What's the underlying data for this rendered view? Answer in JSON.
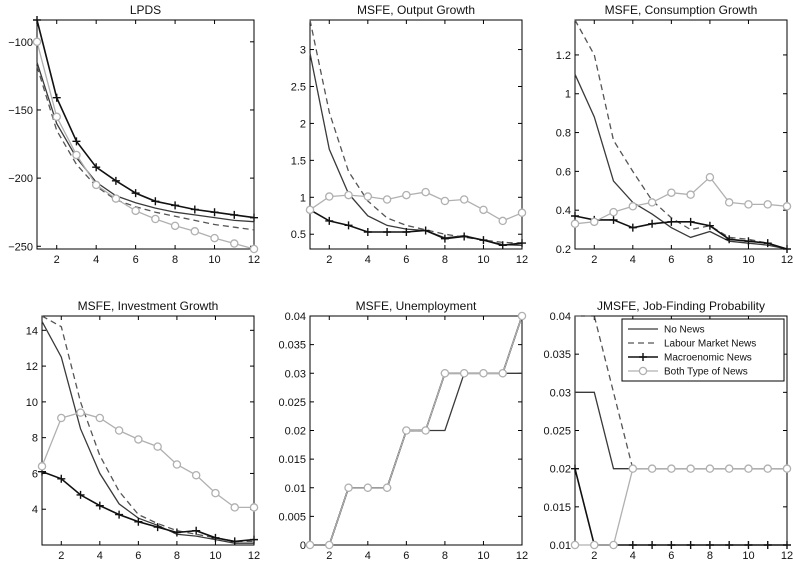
{
  "colors": {
    "no_news": "#3a3a3a",
    "labour_market_news": "#555555",
    "macroeconomic_news": "#111111",
    "both_type_of_news": "#b0b0b0"
  },
  "legend": {
    "entries": [
      "No News",
      "Labour Market News",
      "Macroenomic News",
      "Both Type of News"
    ]
  },
  "chart_data": [
    {
      "type": "line",
      "title": "LPDS",
      "x": [
        1,
        2,
        3,
        4,
        5,
        6,
        7,
        8,
        9,
        10,
        11,
        12
      ],
      "xticks": [
        2,
        4,
        6,
        8,
        10,
        12
      ],
      "xlim": [
        1,
        12
      ],
      "ylim": [
        -252,
        -84
      ],
      "yticks": [
        -100,
        -150,
        -200,
        -250
      ],
      "ytick_labels": [
        "−100",
        "−150",
        "−200",
        "−250"
      ],
      "series": [
        {
          "key": "no_news",
          "name": "No News",
          "marker": "none",
          "values": [
            -115,
            -160,
            -185,
            -203,
            -213,
            -218,
            -222,
            -225,
            -227,
            -229,
            -231,
            -232
          ]
        },
        {
          "key": "labour_market_news",
          "name": "Labour Market News",
          "marker": "none",
          "values": [
            -118,
            -165,
            -190,
            -206,
            -216,
            -221,
            -225,
            -228,
            -231,
            -234,
            -236,
            -238
          ]
        },
        {
          "key": "macroeconomic_news",
          "name": "Macroenomic News",
          "marker": "plus",
          "values": [
            -84,
            -141,
            -173,
            -192,
            -202,
            -211,
            -217,
            -220,
            -223,
            -225,
            -227,
            -229
          ]
        },
        {
          "key": "both_type_of_news",
          "name": "Both Type of News",
          "marker": "circle",
          "values": [
            -100,
            -155,
            -183,
            -205,
            -215,
            -224,
            -230,
            -235,
            -239,
            -244,
            -248,
            -252
          ]
        }
      ]
    },
    {
      "type": "line",
      "title": "MSFE, Output Growth",
      "x": [
        1,
        2,
        3,
        4,
        5,
        6,
        7,
        8,
        9,
        10,
        11,
        12
      ],
      "xticks": [
        2,
        4,
        6,
        8,
        10,
        12
      ],
      "xlim": [
        1,
        12
      ],
      "ylim": [
        0.3,
        3.4
      ],
      "yticks": [
        0.5,
        1,
        1.5,
        2,
        2.5,
        3
      ],
      "ytick_labels": [
        "0.5",
        "1",
        "1.5",
        "2",
        "2.5",
        "3"
      ],
      "series": [
        {
          "key": "no_news",
          "name": "No News",
          "marker": "none",
          "values": [
            2.95,
            1.65,
            1.05,
            0.75,
            0.62,
            0.57,
            0.55,
            0.45,
            0.48,
            0.42,
            0.36,
            0.35
          ]
        },
        {
          "key": "labour_market_news",
          "name": "Labour Market News",
          "marker": "none",
          "values": [
            3.4,
            2.15,
            1.35,
            0.95,
            0.72,
            0.62,
            0.56,
            0.5,
            0.46,
            0.42,
            0.39,
            0.38
          ]
        },
        {
          "key": "macroeconomic_news",
          "name": "Macroenomic News",
          "marker": "plus",
          "values": [
            0.83,
            0.68,
            0.62,
            0.53,
            0.53,
            0.53,
            0.55,
            0.44,
            0.47,
            0.42,
            0.35,
            0.38
          ]
        },
        {
          "key": "both_type_of_news",
          "name": "Both Type of News",
          "marker": "circle",
          "values": [
            0.83,
            1.01,
            1.03,
            1.01,
            0.97,
            1.03,
            1.07,
            0.95,
            0.97,
            0.83,
            0.68,
            0.79
          ]
        }
      ]
    },
    {
      "type": "line",
      "title": "MSFE, Consumption Growth",
      "x": [
        1,
        2,
        3,
        4,
        5,
        6,
        7,
        8,
        9,
        10,
        11,
        12
      ],
      "xticks": [
        2,
        4,
        6,
        8,
        10,
        12
      ],
      "xlim": [
        1,
        12
      ],
      "ylim": [
        0.2,
        1.38
      ],
      "yticks": [
        0.2,
        0.4,
        0.6,
        0.8,
        1,
        1.2
      ],
      "ytick_labels": [
        "0.2",
        "0.4",
        "0.6",
        "0.8",
        "1",
        "1.2"
      ],
      "series": [
        {
          "key": "no_news",
          "name": "No News",
          "marker": "none",
          "values": [
            1.1,
            0.88,
            0.55,
            0.44,
            0.38,
            0.31,
            0.26,
            0.29,
            0.24,
            0.23,
            0.22,
            0.2
          ]
        },
        {
          "key": "labour_market_news",
          "name": "Labour Market News",
          "marker": "none",
          "values": [
            1.38,
            1.2,
            0.76,
            0.6,
            0.45,
            0.36,
            0.3,
            0.32,
            0.26,
            0.25,
            0.23,
            0.2
          ]
        },
        {
          "key": "macroeconomic_news",
          "name": "Macroenomic News",
          "marker": "plus",
          "values": [
            0.37,
            0.35,
            0.35,
            0.31,
            0.33,
            0.34,
            0.34,
            0.32,
            0.25,
            0.24,
            0.23,
            0.2
          ]
        },
        {
          "key": "both_type_of_news",
          "name": "Both Type of News",
          "marker": "circle",
          "values": [
            0.33,
            0.34,
            0.39,
            0.42,
            0.44,
            0.49,
            0.48,
            0.57,
            0.44,
            0.43,
            0.43,
            0.42
          ]
        }
      ]
    },
    {
      "type": "line",
      "title": "MSFE, Investment Growth",
      "x": [
        1,
        2,
        3,
        4,
        5,
        6,
        7,
        8,
        9,
        10,
        11,
        12
      ],
      "xticks": [
        2,
        4,
        6,
        8,
        10,
        12
      ],
      "xlim": [
        1,
        12
      ],
      "ylim": [
        2,
        14.8
      ],
      "yticks": [
        4,
        6,
        8,
        10,
        12,
        14
      ],
      "ytick_labels": [
        "4",
        "6",
        "8",
        "10",
        "12",
        "14"
      ],
      "series": [
        {
          "key": "no_news",
          "name": "No News",
          "marker": "none",
          "values": [
            14.5,
            12.5,
            8.5,
            6,
            4.3,
            3.5,
            3.1,
            2.6,
            2.5,
            2.3,
            2.1,
            2.1
          ]
        },
        {
          "key": "labour_market_news",
          "name": "Labour Market News",
          "marker": "none",
          "values": [
            14.8,
            14.2,
            10,
            7,
            5,
            3.7,
            3.2,
            2.8,
            2.6,
            2.4,
            2.2,
            2.2
          ]
        },
        {
          "key": "macroeconomic_news",
          "name": "Macroenomic News",
          "marker": "plus",
          "values": [
            6.1,
            5.7,
            4.8,
            4.2,
            3.7,
            3.3,
            3,
            2.7,
            2.8,
            2.4,
            2.2,
            2.3
          ]
        },
        {
          "key": "both_type_of_news",
          "name": "Both Type of News",
          "marker": "circle",
          "values": [
            6.4,
            9.1,
            9.4,
            9.1,
            8.4,
            7.9,
            7.5,
            6.5,
            5.9,
            4.9,
            4.1,
            4.1
          ]
        }
      ]
    },
    {
      "type": "line",
      "title": "MSFE, Unemployment",
      "x": [
        1,
        2,
        3,
        4,
        5,
        6,
        7,
        8,
        9,
        10,
        11,
        12
      ],
      "xticks": [
        2,
        4,
        6,
        8,
        10,
        12
      ],
      "xlim": [
        1,
        12
      ],
      "ylim": [
        0,
        0.04
      ],
      "yticks": [
        0,
        0.005,
        0.01,
        0.015,
        0.02,
        0.025,
        0.03,
        0.035,
        0.04
      ],
      "ytick_labels": [
        "0",
        "0.005",
        "0.01",
        "0.015",
        "0.02",
        "0.025",
        "0.03",
        "0.035",
        "0.04"
      ],
      "series": [
        {
          "key": "no_news",
          "name": "No News",
          "marker": "none",
          "values": [
            0,
            0,
            0.01,
            0.01,
            0.01,
            0.02,
            0.02,
            0.02,
            0.03,
            0.03,
            0.03,
            0.03
          ]
        },
        {
          "key": "labour_market_news",
          "name": "Labour Market News",
          "marker": "none",
          "values": [
            0,
            0,
            0.01,
            0.01,
            0.01,
            0.02,
            0.02,
            0.03,
            0.03,
            0.03,
            0.03,
            0.04
          ]
        },
        {
          "key": "macroeconomic_news",
          "name": "Macroenomic News",
          "marker": "plus",
          "values": [
            0,
            0,
            0.01,
            0.01,
            0.01,
            0.02,
            0.02,
            0.03,
            0.03,
            0.03,
            0.03,
            0.04
          ]
        },
        {
          "key": "both_type_of_news",
          "name": "Both Type of News",
          "marker": "circle",
          "values": [
            0,
            0,
            0.01,
            0.01,
            0.01,
            0.02,
            0.02,
            0.03,
            0.03,
            0.03,
            0.03,
            0.04
          ]
        }
      ]
    },
    {
      "type": "line",
      "title": "JMSFE, Job-Finding Probability",
      "x": [
        1,
        2,
        3,
        4,
        5,
        6,
        7,
        8,
        9,
        10,
        11,
        12
      ],
      "xticks": [
        2,
        4,
        6,
        8,
        10,
        12
      ],
      "xlim": [
        1,
        12
      ],
      "ylim": [
        0.01,
        0.04
      ],
      "yticks": [
        0.01,
        0.015,
        0.02,
        0.025,
        0.03,
        0.035,
        0.04
      ],
      "ytick_labels": [
        "0.01",
        "0.015",
        "0.02",
        "0.025",
        "0.03",
        "0.035",
        "0.04"
      ],
      "legend_position": "top-right",
      "series": [
        {
          "key": "no_news",
          "name": "No News",
          "marker": "none",
          "values": [
            0.03,
            0.03,
            0.02,
            0.02,
            0.02,
            0.02,
            0.02,
            0.02,
            0.02,
            0.02,
            0.02,
            0.02
          ]
        },
        {
          "key": "labour_market_news",
          "name": "Labour Market News",
          "marker": "none",
          "values": [
            0.04,
            0.04,
            0.03,
            0.02,
            0.02,
            0.02,
            0.02,
            0.02,
            0.02,
            0.02,
            0.02,
            0.02
          ]
        },
        {
          "key": "macroeconomic_news",
          "name": "Macroenomic News",
          "marker": "plus",
          "values": [
            0.02,
            0.01,
            0.01,
            0.01,
            0.01,
            0.01,
            0.01,
            0.01,
            0.01,
            0.01,
            0.01,
            0.01
          ]
        },
        {
          "key": "both_type_of_news",
          "name": "Both Type of News",
          "marker": "circle",
          "values": [
            0.01,
            0.01,
            0.01,
            0.02,
            0.02,
            0.02,
            0.02,
            0.02,
            0.02,
            0.02,
            0.02,
            0.02
          ]
        }
      ]
    }
  ]
}
